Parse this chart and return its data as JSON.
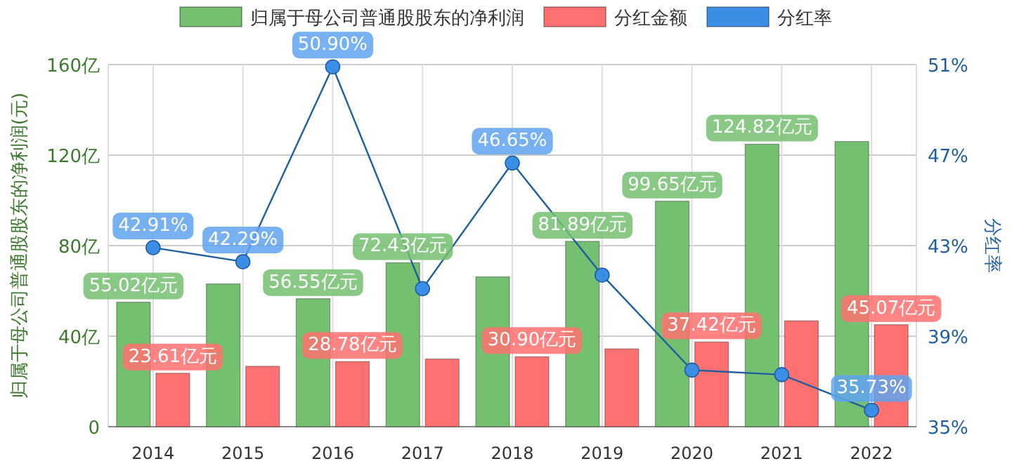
{
  "chart_data": {
    "type": "bar",
    "categories": [
      "2014",
      "2015",
      "2016",
      "2017",
      "2018",
      "2019",
      "2020",
      "2021",
      "2022"
    ],
    "ylabel": "归属于母公司普通股股东的净利润(元)",
    "y2label": "分红率",
    "ylim": [
      0,
      160
    ],
    "yticks": [
      0,
      {
        "value": 40,
        "label": "40亿"
      },
      {
        "value": 80,
        "label": "80亿"
      },
      {
        "value": 120,
        "label": "120亿"
      },
      {
        "value": 160,
        "label": "160亿"
      }
    ],
    "y2lim": [
      35,
      51
    ],
    "y2ticks": [
      {
        "value": 35,
        "label": "35%"
      },
      {
        "value": 39,
        "label": "39%"
      },
      {
        "value": 43,
        "label": "43%"
      },
      {
        "value": 47,
        "label": "47%"
      },
      {
        "value": 51,
        "label": "51%"
      }
    ],
    "grid": true,
    "legend": "top",
    "marker": "circle",
    "series": [
      {
        "name": "归属于母公司普通股股东的净利润",
        "color": "#74c070",
        "values": [
          55.02,
          63.1,
          56.55,
          72.43,
          66.2,
          81.89,
          99.65,
          124.82,
          126
        ],
        "value_labels": [
          "55.02亿元",
          null,
          "56.55亿元",
          "72.43亿元",
          null,
          "81.89亿元",
          "99.65亿元",
          "124.82亿元",
          null
        ]
      },
      {
        "name": "分红金额",
        "color": "#ff7070",
        "values": [
          23.61,
          26.7,
          28.78,
          29.9,
          30.9,
          34.4,
          37.42,
          46.8,
          45.07
        ],
        "value_labels": [
          "23.61亿元",
          null,
          "28.78亿元",
          null,
          "30.90亿元",
          null,
          "37.42亿元",
          null,
          "45.07亿元"
        ]
      },
      {
        "name": "分红率",
        "type": "line",
        "axis": "y2",
        "color": "#1f5f9f",
        "values": [
          42.91,
          42.29,
          50.9,
          41.1,
          46.65,
          41.7,
          37.5,
          37.3,
          35.73
        ],
        "value_labels": [
          "42.91%",
          "42.29%",
          "50.90%",
          null,
          "46.65%",
          null,
          null,
          null,
          "35.73%"
        ]
      }
    ]
  }
}
